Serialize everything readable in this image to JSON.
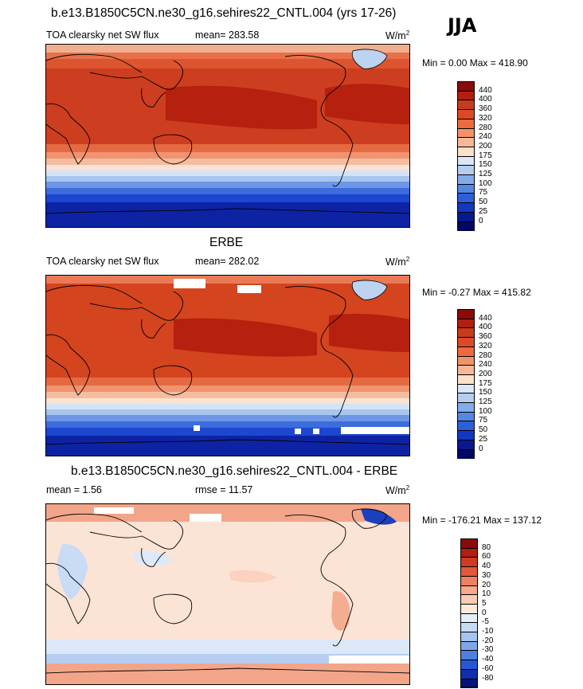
{
  "season": "JJA",
  "panels": [
    {
      "id": "model",
      "title": "b.e13.B1850C5CN.ne30_g16.sehires22_CNTL.004 (yrs 17-26)",
      "left_label": "TOA clearsky net SW flux",
      "center_label": "mean= 283.58",
      "units": "W/m",
      "units_sup": "2",
      "minmax": "Min =   0.00 Max = 418.90",
      "colorbar": {
        "labels": [
          "440",
          "400",
          "360",
          "320",
          "280",
          "240",
          "200",
          "175",
          "150",
          "125",
          "100",
          "75",
          "50",
          "25",
          "0"
        ],
        "colors": [
          "#8b0a0a",
          "#b01f10",
          "#c83a1d",
          "#dc4a25",
          "#ec6a3e",
          "#f2936a",
          "#f6b895",
          "#fbe0cc",
          "#dbe7f6",
          "#b5cdef",
          "#85acea",
          "#5587e3",
          "#2c5fd9",
          "#1238c2",
          "#08188f",
          "#020863"
        ]
      }
    },
    {
      "id": "obs",
      "title": "ERBE",
      "left_label": "TOA clearsky net SW flux",
      "center_label": "mean= 282.02",
      "units": "W/m",
      "units_sup": "2",
      "minmax": "Min =  -0.27 Max = 415.82",
      "colorbar": {
        "labels": [
          "440",
          "400",
          "360",
          "320",
          "280",
          "240",
          "200",
          "175",
          "150",
          "125",
          "100",
          "75",
          "50",
          "25",
          "0"
        ],
        "colors": [
          "#8b0a0a",
          "#b01f10",
          "#c83a1d",
          "#dc4a25",
          "#ec6a3e",
          "#f2936a",
          "#f6b895",
          "#fbe0cc",
          "#dbe7f6",
          "#b5cdef",
          "#85acea",
          "#5587e3",
          "#2c5fd9",
          "#1238c2",
          "#08188f",
          "#020863"
        ]
      }
    },
    {
      "id": "diff",
      "title": "b.e13.B1850C5CN.ne30_g16.sehires22_CNTL.004 - ERBE",
      "left_label": "mean =   1.56",
      "center_label": "rmse =  11.57",
      "units": "W/m",
      "units_sup": "2",
      "minmax": "Min = -176.21 Max = 137.12",
      "colorbar": {
        "labels": [
          "80",
          "60",
          "40",
          "30",
          "20",
          "10",
          "5",
          "0",
          "-5",
          "-10",
          "-20",
          "-30",
          "-40",
          "-60",
          "-80"
        ],
        "colors": [
          "#8b0a0a",
          "#b01f10",
          "#d13a22",
          "#e2593a",
          "#ef8060",
          "#f5a88a",
          "#f9cbb5",
          "#fde9dc",
          "#e6eefa",
          "#c9daf5",
          "#a7c3ef",
          "#7ea6e8",
          "#4f80df",
          "#2757d2",
          "#0f2fae",
          "#04137a"
        ]
      }
    }
  ]
}
